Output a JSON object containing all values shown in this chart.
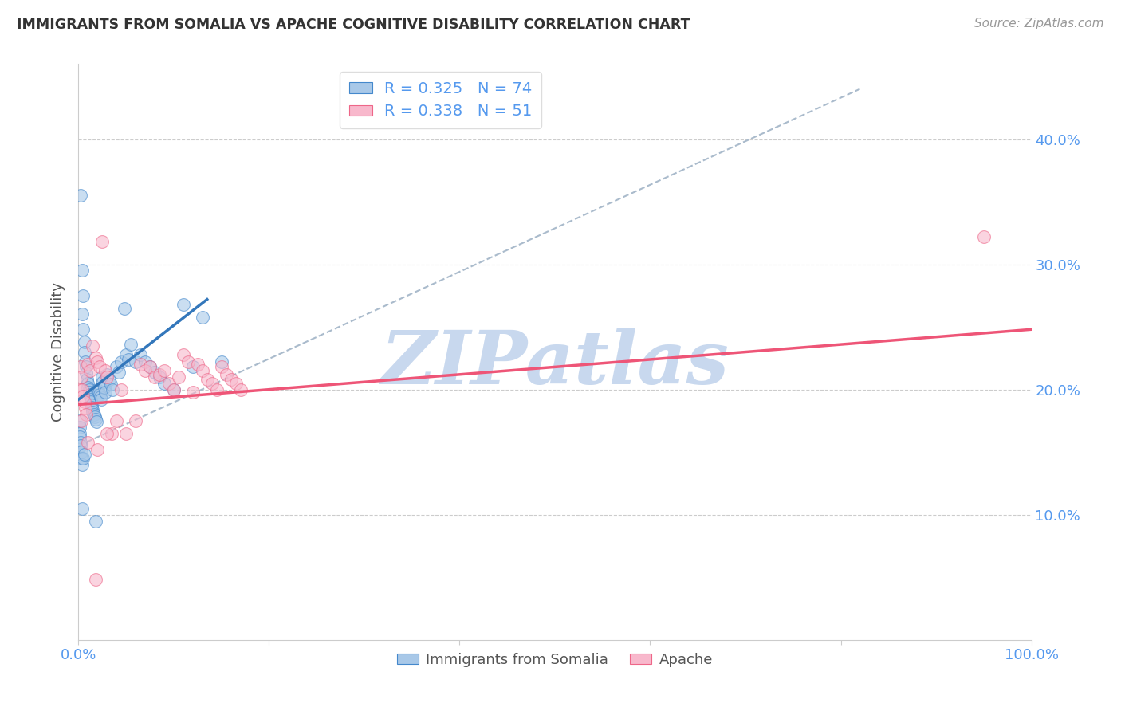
{
  "title": "IMMIGRANTS FROM SOMALIA VS APACHE COGNITIVE DISABILITY CORRELATION CHART",
  "source": "Source: ZipAtlas.com",
  "ylabel": "Cognitive Disability",
  "right_yticks": [
    "40.0%",
    "30.0%",
    "20.0%",
    "10.0%"
  ],
  "right_ytick_vals": [
    0.4,
    0.3,
    0.2,
    0.1
  ],
  "xlim": [
    0.0,
    1.0
  ],
  "ylim": [
    0.0,
    0.46
  ],
  "legend_blue_R": "0.325",
  "legend_blue_N": "74",
  "legend_pink_R": "0.338",
  "legend_pink_N": "51",
  "blue_color": "#a8c8e8",
  "pink_color": "#f8b8cc",
  "blue_edge_color": "#4488cc",
  "pink_edge_color": "#ee6688",
  "blue_line_color": "#3377bb",
  "pink_line_color": "#ee5577",
  "dashed_line_color": "#aabbcc",
  "watermark": "ZIPatlas",
  "watermark_color": "#c8d8ee",
  "background_color": "#ffffff",
  "grid_color": "#cccccc",
  "title_color": "#333333",
  "source_color": "#999999",
  "axis_label_color": "#5599ee",
  "blue_scatter": [
    [
      0.002,
      0.355
    ],
    [
      0.004,
      0.295
    ],
    [
      0.005,
      0.275
    ],
    [
      0.004,
      0.26
    ],
    [
      0.005,
      0.248
    ],
    [
      0.006,
      0.238
    ],
    [
      0.006,
      0.23
    ],
    [
      0.007,
      0.222
    ],
    [
      0.008,
      0.218
    ],
    [
      0.008,
      0.213
    ],
    [
      0.009,
      0.208
    ],
    [
      0.01,
      0.205
    ],
    [
      0.01,
      0.202
    ],
    [
      0.011,
      0.2
    ],
    [
      0.011,
      0.198
    ],
    [
      0.012,
      0.196
    ],
    [
      0.012,
      0.194
    ],
    [
      0.013,
      0.192
    ],
    [
      0.013,
      0.19
    ],
    [
      0.014,
      0.188
    ],
    [
      0.014,
      0.186
    ],
    [
      0.015,
      0.184
    ],
    [
      0.015,
      0.182
    ],
    [
      0.016,
      0.18
    ],
    [
      0.017,
      0.178
    ],
    [
      0.018,
      0.176
    ],
    [
      0.019,
      0.174
    ],
    [
      0.02,
      0.2
    ],
    [
      0.021,
      0.198
    ],
    [
      0.022,
      0.196
    ],
    [
      0.023,
      0.194
    ],
    [
      0.024,
      0.192
    ],
    [
      0.025,
      0.21
    ],
    [
      0.026,
      0.206
    ],
    [
      0.027,
      0.202
    ],
    [
      0.028,
      0.198
    ],
    [
      0.03,
      0.212
    ],
    [
      0.032,
      0.208
    ],
    [
      0.034,
      0.204
    ],
    [
      0.036,
      0.2
    ],
    [
      0.04,
      0.218
    ],
    [
      0.042,
      0.214
    ],
    [
      0.045,
      0.222
    ],
    [
      0.048,
      0.265
    ],
    [
      0.05,
      0.228
    ],
    [
      0.052,
      0.224
    ],
    [
      0.055,
      0.236
    ],
    [
      0.06,
      0.222
    ],
    [
      0.065,
      0.228
    ],
    [
      0.07,
      0.222
    ],
    [
      0.075,
      0.218
    ],
    [
      0.08,
      0.214
    ],
    [
      0.085,
      0.21
    ],
    [
      0.09,
      0.205
    ],
    [
      0.1,
      0.2
    ],
    [
      0.11,
      0.268
    ],
    [
      0.12,
      0.218
    ],
    [
      0.13,
      0.258
    ],
    [
      0.001,
      0.17
    ],
    [
      0.001,
      0.165
    ],
    [
      0.001,
      0.162
    ],
    [
      0.001,
      0.175
    ],
    [
      0.002,
      0.158
    ],
    [
      0.002,
      0.155
    ],
    [
      0.003,
      0.15
    ],
    [
      0.003,
      0.145
    ],
    [
      0.004,
      0.14
    ],
    [
      0.005,
      0.145
    ],
    [
      0.006,
      0.148
    ],
    [
      0.15,
      0.222
    ],
    [
      0.018,
      0.095
    ],
    [
      0.004,
      0.105
    ]
  ],
  "pink_scatter": [
    [
      0.001,
      0.2
    ],
    [
      0.002,
      0.218
    ],
    [
      0.003,
      0.21
    ],
    [
      0.004,
      0.2
    ],
    [
      0.005,
      0.195
    ],
    [
      0.006,
      0.19
    ],
    [
      0.007,
      0.185
    ],
    [
      0.008,
      0.18
    ],
    [
      0.01,
      0.22
    ],
    [
      0.012,
      0.215
    ],
    [
      0.015,
      0.235
    ],
    [
      0.018,
      0.225
    ],
    [
      0.02,
      0.222
    ],
    [
      0.022,
      0.218
    ],
    [
      0.025,
      0.318
    ],
    [
      0.028,
      0.215
    ],
    [
      0.03,
      0.21
    ],
    [
      0.035,
      0.165
    ],
    [
      0.04,
      0.175
    ],
    [
      0.045,
      0.2
    ],
    [
      0.05,
      0.165
    ],
    [
      0.06,
      0.175
    ],
    [
      0.065,
      0.22
    ],
    [
      0.07,
      0.215
    ],
    [
      0.075,
      0.218
    ],
    [
      0.08,
      0.21
    ],
    [
      0.085,
      0.212
    ],
    [
      0.09,
      0.215
    ],
    [
      0.095,
      0.205
    ],
    [
      0.1,
      0.2
    ],
    [
      0.105,
      0.21
    ],
    [
      0.11,
      0.228
    ],
    [
      0.115,
      0.222
    ],
    [
      0.12,
      0.198
    ],
    [
      0.125,
      0.22
    ],
    [
      0.13,
      0.215
    ],
    [
      0.135,
      0.208
    ],
    [
      0.14,
      0.205
    ],
    [
      0.145,
      0.2
    ],
    [
      0.15,
      0.218
    ],
    [
      0.155,
      0.212
    ],
    [
      0.16,
      0.208
    ],
    [
      0.165,
      0.205
    ],
    [
      0.17,
      0.2
    ],
    [
      0.003,
      0.175
    ],
    [
      0.01,
      0.158
    ],
    [
      0.02,
      0.152
    ],
    [
      0.018,
      0.048
    ],
    [
      0.03,
      0.165
    ],
    [
      0.95,
      0.322
    ]
  ],
  "blue_trend_x": [
    0.0,
    0.135
  ],
  "blue_trend_y": [
    0.192,
    0.272
  ],
  "pink_trend_x": [
    0.0,
    1.0
  ],
  "pink_trend_y": [
    0.188,
    0.248
  ],
  "dashed_trend_x": [
    0.0,
    0.82
  ],
  "dashed_trend_y": [
    0.155,
    0.44
  ]
}
